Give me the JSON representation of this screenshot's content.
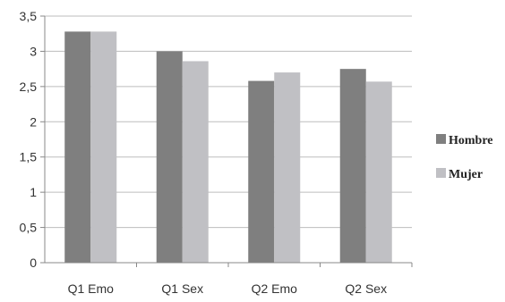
{
  "chart_data": {
    "type": "bar",
    "categories": [
      "Q1 Emo",
      "Q1 Sex",
      "Q2 Emo",
      "Q2 Sex"
    ],
    "series": [
      {
        "name": "Hombre",
        "values": [
          3.28,
          3.0,
          2.58,
          2.75
        ],
        "color": "#7f7f7f"
      },
      {
        "name": "Mujer",
        "values": [
          3.28,
          2.86,
          2.7,
          2.57
        ],
        "color": "#c0c0c4"
      }
    ],
    "yticks": [
      "0",
      "0,5",
      "1",
      "1,5",
      "2",
      "2,5",
      "3",
      "3,5"
    ],
    "ylim": [
      0,
      3.5
    ],
    "grid": true,
    "legend_position": "right"
  }
}
